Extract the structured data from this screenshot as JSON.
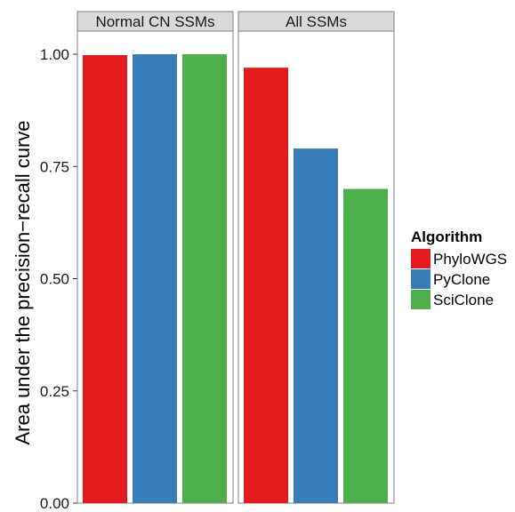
{
  "chart_data": {
    "type": "bar",
    "ylabel": "Area under the precision−recall curve",
    "ylim": [
      0,
      1.0
    ],
    "yticks": [
      "0.00",
      "0.25",
      "0.50",
      "0.75",
      "1.00"
    ],
    "ytick_values": [
      0,
      0.25,
      0.5,
      0.75,
      1.0
    ],
    "legend": {
      "title": "Algorithm",
      "placement": "right",
      "entries": [
        "PhyloWGS",
        "PyClone",
        "SciClone"
      ]
    },
    "colors": {
      "PhyloWGS": "#e41a1c",
      "PyClone": "#377eb8",
      "SciClone": "#4daf4a"
    },
    "panels": [
      {
        "title": "Normal CN SSMs",
        "series": [
          {
            "name": "PhyloWGS",
            "value": 0.998
          },
          {
            "name": "PyClone",
            "value": 1.0
          },
          {
            "name": "SciClone",
            "value": 1.0
          }
        ]
      },
      {
        "title": "All SSMs",
        "series": [
          {
            "name": "PhyloWGS",
            "value": 0.97
          },
          {
            "name": "PyClone",
            "value": 0.79
          },
          {
            "name": "SciClone",
            "value": 0.7
          }
        ]
      }
    ],
    "grid": false
  }
}
